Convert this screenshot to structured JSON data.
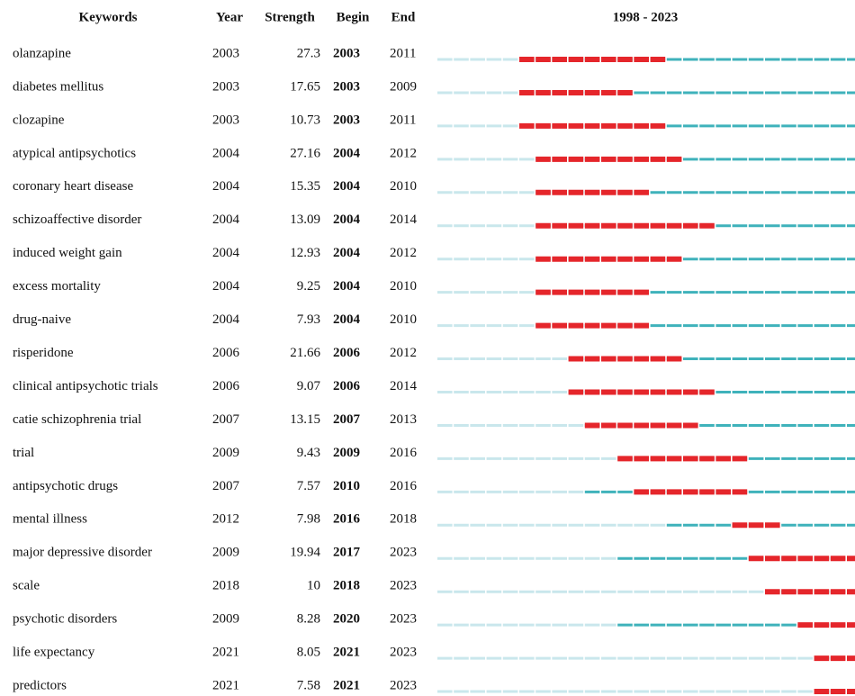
{
  "table": {
    "header": [
      "Keywords",
      "Year",
      "Strength",
      "Begin",
      "End"
    ],
    "range_label": "1998 - 2023",
    "range": [
      1998,
      2023
    ],
    "rows": [
      [
        "olanzapine",
        2003,
        27.3,
        2003,
        2011
      ],
      [
        "diabetes mellitus",
        2003,
        17.65,
        2003,
        2009
      ],
      [
        "clozapine",
        2003,
        10.73,
        2003,
        2011
      ],
      [
        "atypical antipsychotics",
        2004,
        27.16,
        2004,
        2012
      ],
      [
        "coronary heart disease",
        2004,
        15.35,
        2004,
        2010
      ],
      [
        "schizoaffective disorder",
        2004,
        13.09,
        2004,
        2014
      ],
      [
        "induced weight gain",
        2004,
        12.93,
        2004,
        2012
      ],
      [
        "excess mortality",
        2004,
        9.25,
        2004,
        2010
      ],
      [
        "drug-naive",
        2004,
        7.93,
        2004,
        2010
      ],
      [
        "risperidone",
        2006,
        21.66,
        2006,
        2012
      ],
      [
        "clinical antipsychotic trials",
        2006,
        9.07,
        2006,
        2014
      ],
      [
        "catie schizophrenia trial",
        2007,
        13.15,
        2007,
        2013
      ],
      [
        "trial",
        2009,
        9.43,
        2009,
        2016
      ],
      [
        "antipsychotic drugs",
        2007,
        7.57,
        2010,
        2016
      ],
      [
        "mental illness",
        2012,
        7.98,
        2016,
        2018
      ],
      [
        "major depressive disorder",
        2009,
        19.94,
        2017,
        2023
      ],
      [
        "scale",
        2018,
        10,
        2018,
        2023
      ],
      [
        "psychotic disorders",
        2009,
        8.28,
        2020,
        2023
      ],
      [
        "life expectancy",
        2021,
        8.05,
        2021,
        2023
      ],
      [
        "predictors",
        2021,
        7.58,
        2021,
        2023
      ]
    ]
  }
}
